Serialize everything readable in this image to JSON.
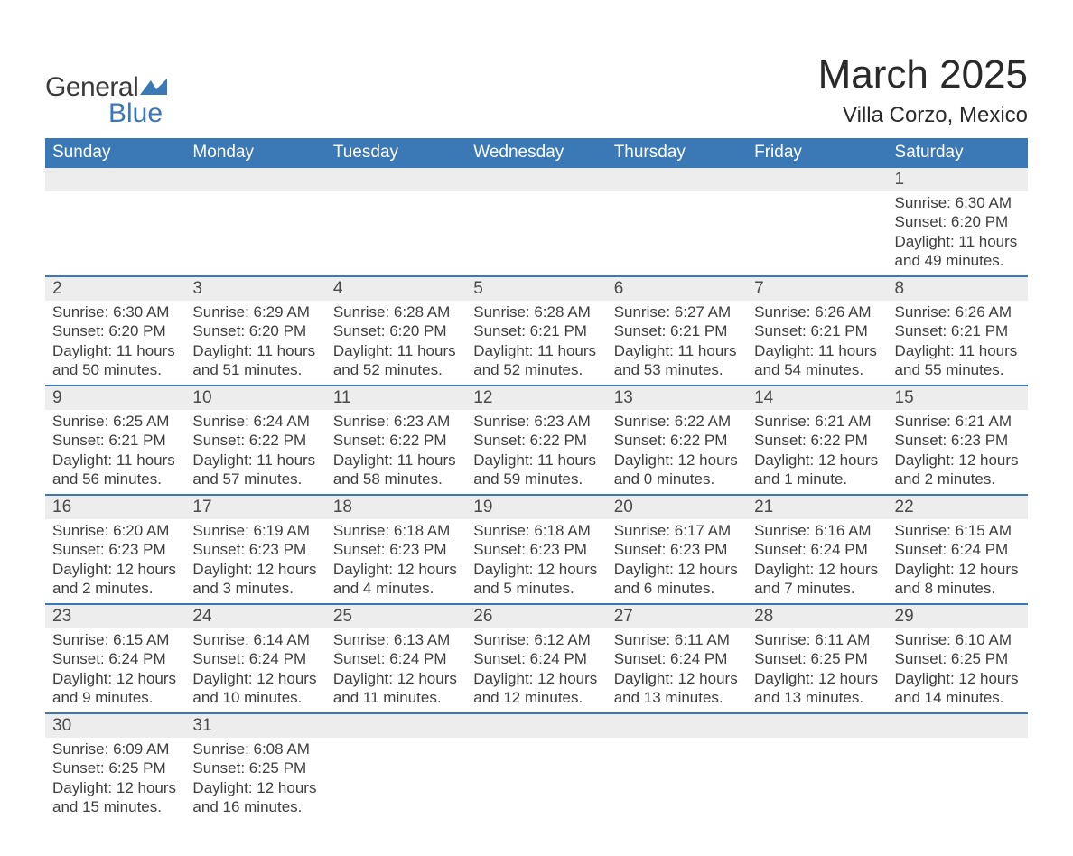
{
  "brand": {
    "name1": "General",
    "name2": "Blue",
    "swoosh_color": "#3a78b6"
  },
  "title": "March 2025",
  "location": "Villa Corzo, Mexico",
  "colors": {
    "header_bg": "#3a78b6",
    "header_text": "#ffffff",
    "daynum_bg": "#ededed",
    "row_border": "#3a78b6",
    "body_text": "#3e3e3e",
    "title_text": "#2a2a2a"
  },
  "day_headers": [
    "Sunday",
    "Monday",
    "Tuesday",
    "Wednesday",
    "Thursday",
    "Friday",
    "Saturday"
  ],
  "weeks": [
    [
      {
        "empty": true
      },
      {
        "empty": true
      },
      {
        "empty": true
      },
      {
        "empty": true
      },
      {
        "empty": true
      },
      {
        "empty": true
      },
      {
        "num": "1",
        "sunrise": "Sunrise: 6:30 AM",
        "sunset": "Sunset: 6:20 PM",
        "daylight": "Daylight: 11 hours and 49 minutes."
      }
    ],
    [
      {
        "num": "2",
        "sunrise": "Sunrise: 6:30 AM",
        "sunset": "Sunset: 6:20 PM",
        "daylight": "Daylight: 11 hours and 50 minutes."
      },
      {
        "num": "3",
        "sunrise": "Sunrise: 6:29 AM",
        "sunset": "Sunset: 6:20 PM",
        "daylight": "Daylight: 11 hours and 51 minutes."
      },
      {
        "num": "4",
        "sunrise": "Sunrise: 6:28 AM",
        "sunset": "Sunset: 6:20 PM",
        "daylight": "Daylight: 11 hours and 52 minutes."
      },
      {
        "num": "5",
        "sunrise": "Sunrise: 6:28 AM",
        "sunset": "Sunset: 6:21 PM",
        "daylight": "Daylight: 11 hours and 52 minutes."
      },
      {
        "num": "6",
        "sunrise": "Sunrise: 6:27 AM",
        "sunset": "Sunset: 6:21 PM",
        "daylight": "Daylight: 11 hours and 53 minutes."
      },
      {
        "num": "7",
        "sunrise": "Sunrise: 6:26 AM",
        "sunset": "Sunset: 6:21 PM",
        "daylight": "Daylight: 11 hours and 54 minutes."
      },
      {
        "num": "8",
        "sunrise": "Sunrise: 6:26 AM",
        "sunset": "Sunset: 6:21 PM",
        "daylight": "Daylight: 11 hours and 55 minutes."
      }
    ],
    [
      {
        "num": "9",
        "sunrise": "Sunrise: 6:25 AM",
        "sunset": "Sunset: 6:21 PM",
        "daylight": "Daylight: 11 hours and 56 minutes."
      },
      {
        "num": "10",
        "sunrise": "Sunrise: 6:24 AM",
        "sunset": "Sunset: 6:22 PM",
        "daylight": "Daylight: 11 hours and 57 minutes."
      },
      {
        "num": "11",
        "sunrise": "Sunrise: 6:23 AM",
        "sunset": "Sunset: 6:22 PM",
        "daylight": "Daylight: 11 hours and 58 minutes."
      },
      {
        "num": "12",
        "sunrise": "Sunrise: 6:23 AM",
        "sunset": "Sunset: 6:22 PM",
        "daylight": "Daylight: 11 hours and 59 minutes."
      },
      {
        "num": "13",
        "sunrise": "Sunrise: 6:22 AM",
        "sunset": "Sunset: 6:22 PM",
        "daylight": "Daylight: 12 hours and 0 minutes."
      },
      {
        "num": "14",
        "sunrise": "Sunrise: 6:21 AM",
        "sunset": "Sunset: 6:22 PM",
        "daylight": "Daylight: 12 hours and 1 minute."
      },
      {
        "num": "15",
        "sunrise": "Sunrise: 6:21 AM",
        "sunset": "Sunset: 6:23 PM",
        "daylight": "Daylight: 12 hours and 2 minutes."
      }
    ],
    [
      {
        "num": "16",
        "sunrise": "Sunrise: 6:20 AM",
        "sunset": "Sunset: 6:23 PM",
        "daylight": "Daylight: 12 hours and 2 minutes."
      },
      {
        "num": "17",
        "sunrise": "Sunrise: 6:19 AM",
        "sunset": "Sunset: 6:23 PM",
        "daylight": "Daylight: 12 hours and 3 minutes."
      },
      {
        "num": "18",
        "sunrise": "Sunrise: 6:18 AM",
        "sunset": "Sunset: 6:23 PM",
        "daylight": "Daylight: 12 hours and 4 minutes."
      },
      {
        "num": "19",
        "sunrise": "Sunrise: 6:18 AM",
        "sunset": "Sunset: 6:23 PM",
        "daylight": "Daylight: 12 hours and 5 minutes."
      },
      {
        "num": "20",
        "sunrise": "Sunrise: 6:17 AM",
        "sunset": "Sunset: 6:23 PM",
        "daylight": "Daylight: 12 hours and 6 minutes."
      },
      {
        "num": "21",
        "sunrise": "Sunrise: 6:16 AM",
        "sunset": "Sunset: 6:24 PM",
        "daylight": "Daylight: 12 hours and 7 minutes."
      },
      {
        "num": "22",
        "sunrise": "Sunrise: 6:15 AM",
        "sunset": "Sunset: 6:24 PM",
        "daylight": "Daylight: 12 hours and 8 minutes."
      }
    ],
    [
      {
        "num": "23",
        "sunrise": "Sunrise: 6:15 AM",
        "sunset": "Sunset: 6:24 PM",
        "daylight": "Daylight: 12 hours and 9 minutes."
      },
      {
        "num": "24",
        "sunrise": "Sunrise: 6:14 AM",
        "sunset": "Sunset: 6:24 PM",
        "daylight": "Daylight: 12 hours and 10 minutes."
      },
      {
        "num": "25",
        "sunrise": "Sunrise: 6:13 AM",
        "sunset": "Sunset: 6:24 PM",
        "daylight": "Daylight: 12 hours and 11 minutes."
      },
      {
        "num": "26",
        "sunrise": "Sunrise: 6:12 AM",
        "sunset": "Sunset: 6:24 PM",
        "daylight": "Daylight: 12 hours and 12 minutes."
      },
      {
        "num": "27",
        "sunrise": "Sunrise: 6:11 AM",
        "sunset": "Sunset: 6:24 PM",
        "daylight": "Daylight: 12 hours and 13 minutes."
      },
      {
        "num": "28",
        "sunrise": "Sunrise: 6:11 AM",
        "sunset": "Sunset: 6:25 PM",
        "daylight": "Daylight: 12 hours and 13 minutes."
      },
      {
        "num": "29",
        "sunrise": "Sunrise: 6:10 AM",
        "sunset": "Sunset: 6:25 PM",
        "daylight": "Daylight: 12 hours and 14 minutes."
      }
    ],
    [
      {
        "num": "30",
        "sunrise": "Sunrise: 6:09 AM",
        "sunset": "Sunset: 6:25 PM",
        "daylight": "Daylight: 12 hours and 15 minutes."
      },
      {
        "num": "31",
        "sunrise": "Sunrise: 6:08 AM",
        "sunset": "Sunset: 6:25 PM",
        "daylight": "Daylight: 12 hours and 16 minutes."
      },
      {
        "empty": true
      },
      {
        "empty": true
      },
      {
        "empty": true
      },
      {
        "empty": true
      },
      {
        "empty": true
      }
    ]
  ]
}
